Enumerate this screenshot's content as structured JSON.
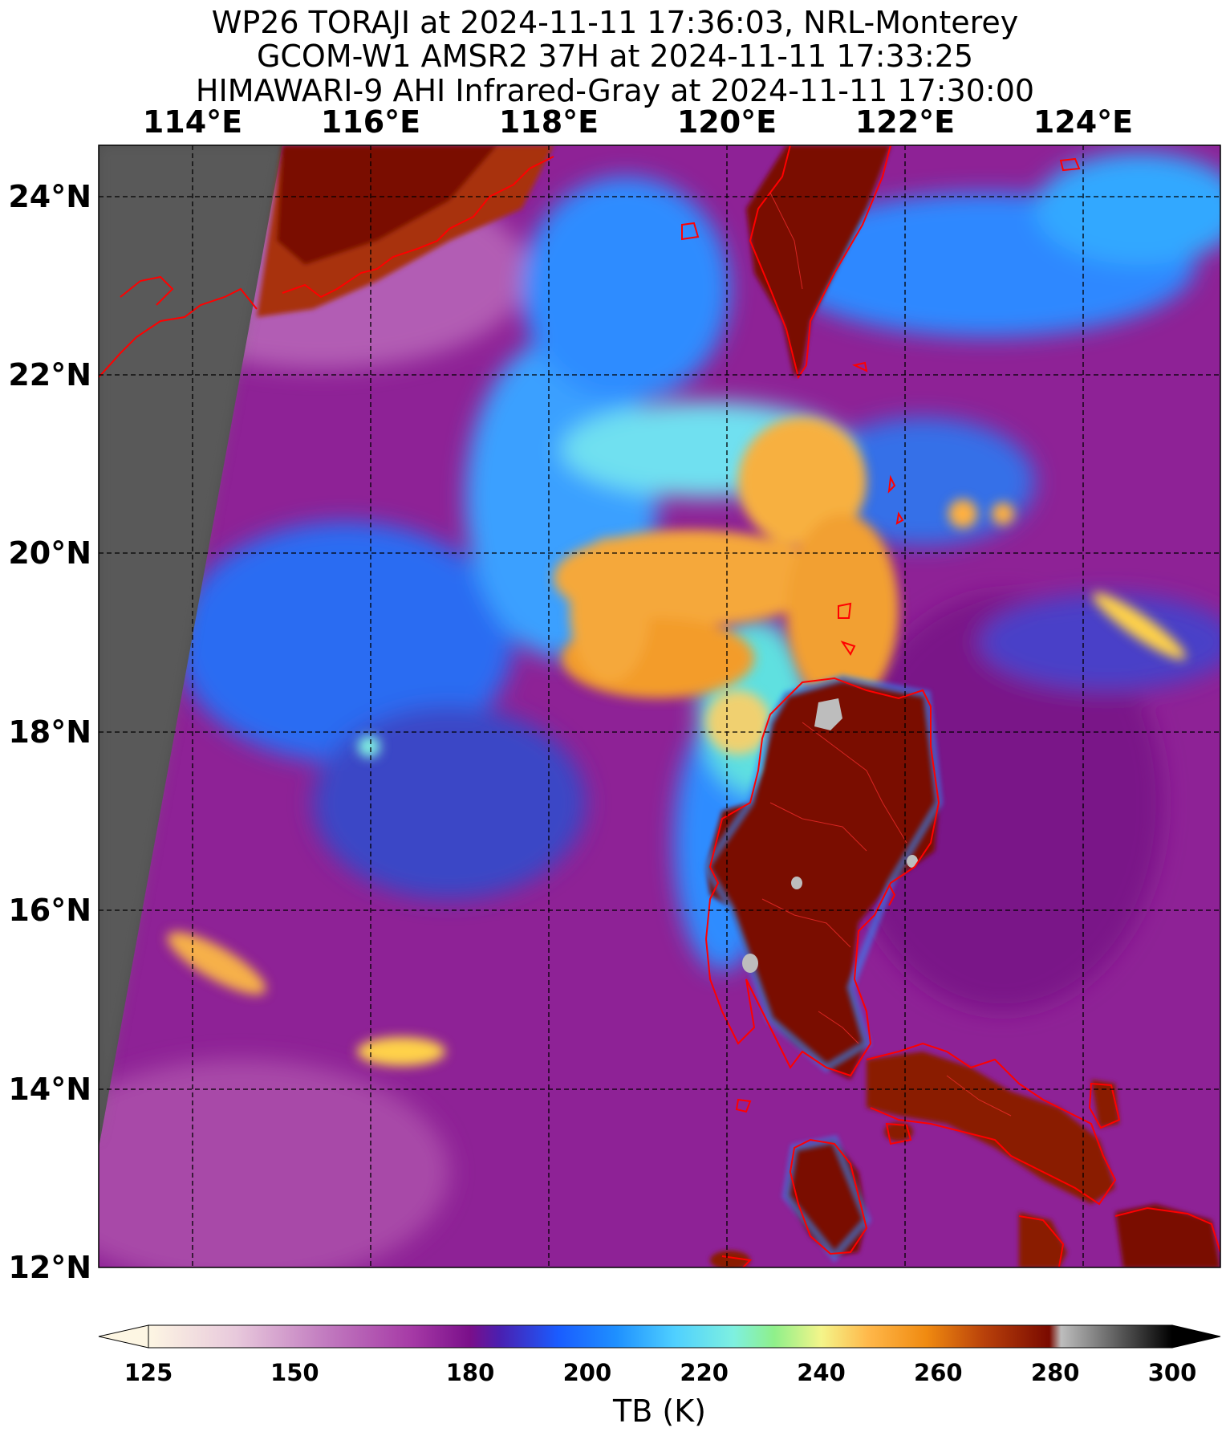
{
  "title": {
    "line1": "WP26 TORAJI at 2024-11-11 17:36:03, NRL-Monterey",
    "line2": "GCOM-W1 AMSR2 37H at 2024-11-11 17:33:25",
    "line3": "HIMAWARI-9 AHI Infrared-Gray at 2024-11-11 17:30:00"
  },
  "map": {
    "lon_labels": [
      "114°E",
      "116°E",
      "118°E",
      "120°E",
      "122°E",
      "124°E"
    ],
    "lat_labels": [
      "24°N",
      "22°N",
      "20°N",
      "18°N",
      "16°N",
      "14°N",
      "12°N"
    ],
    "lon_range": [
      112.95,
      125.55
    ],
    "lat_range": [
      12.0,
      24.55
    ],
    "coastline_color": "#ff0000",
    "gridline_style": "dashed black"
  },
  "colorbar": {
    "title": "TB (K)",
    "tick_labels": [
      "125",
      "150",
      "180",
      "200",
      "220",
      "240",
      "260",
      "280",
      "300"
    ],
    "range": [
      125,
      300
    ],
    "extend": "both",
    "stops": [
      {
        "v": 125,
        "c": "#fdf6e3"
      },
      {
        "v": 140,
        "c": "#e8c9dc"
      },
      {
        "v": 155,
        "c": "#c27cc0"
      },
      {
        "v": 170,
        "c": "#a63aa6"
      },
      {
        "v": 180,
        "c": "#7a0f8a"
      },
      {
        "v": 185,
        "c": "#4a1fb0"
      },
      {
        "v": 195,
        "c": "#1a5cff"
      },
      {
        "v": 205,
        "c": "#1e90ff"
      },
      {
        "v": 215,
        "c": "#4fd0ff"
      },
      {
        "v": 225,
        "c": "#7ef0e0"
      },
      {
        "v": 232,
        "c": "#8ff08a"
      },
      {
        "v": 240,
        "c": "#f4f58a"
      },
      {
        "v": 248,
        "c": "#ffb84a"
      },
      {
        "v": 258,
        "c": "#f08a10"
      },
      {
        "v": 268,
        "c": "#b8400a"
      },
      {
        "v": 279,
        "c": "#7a0a00"
      },
      {
        "v": 281,
        "c": "#bdbdbd"
      },
      {
        "v": 300,
        "c": "#000000"
      }
    ]
  }
}
